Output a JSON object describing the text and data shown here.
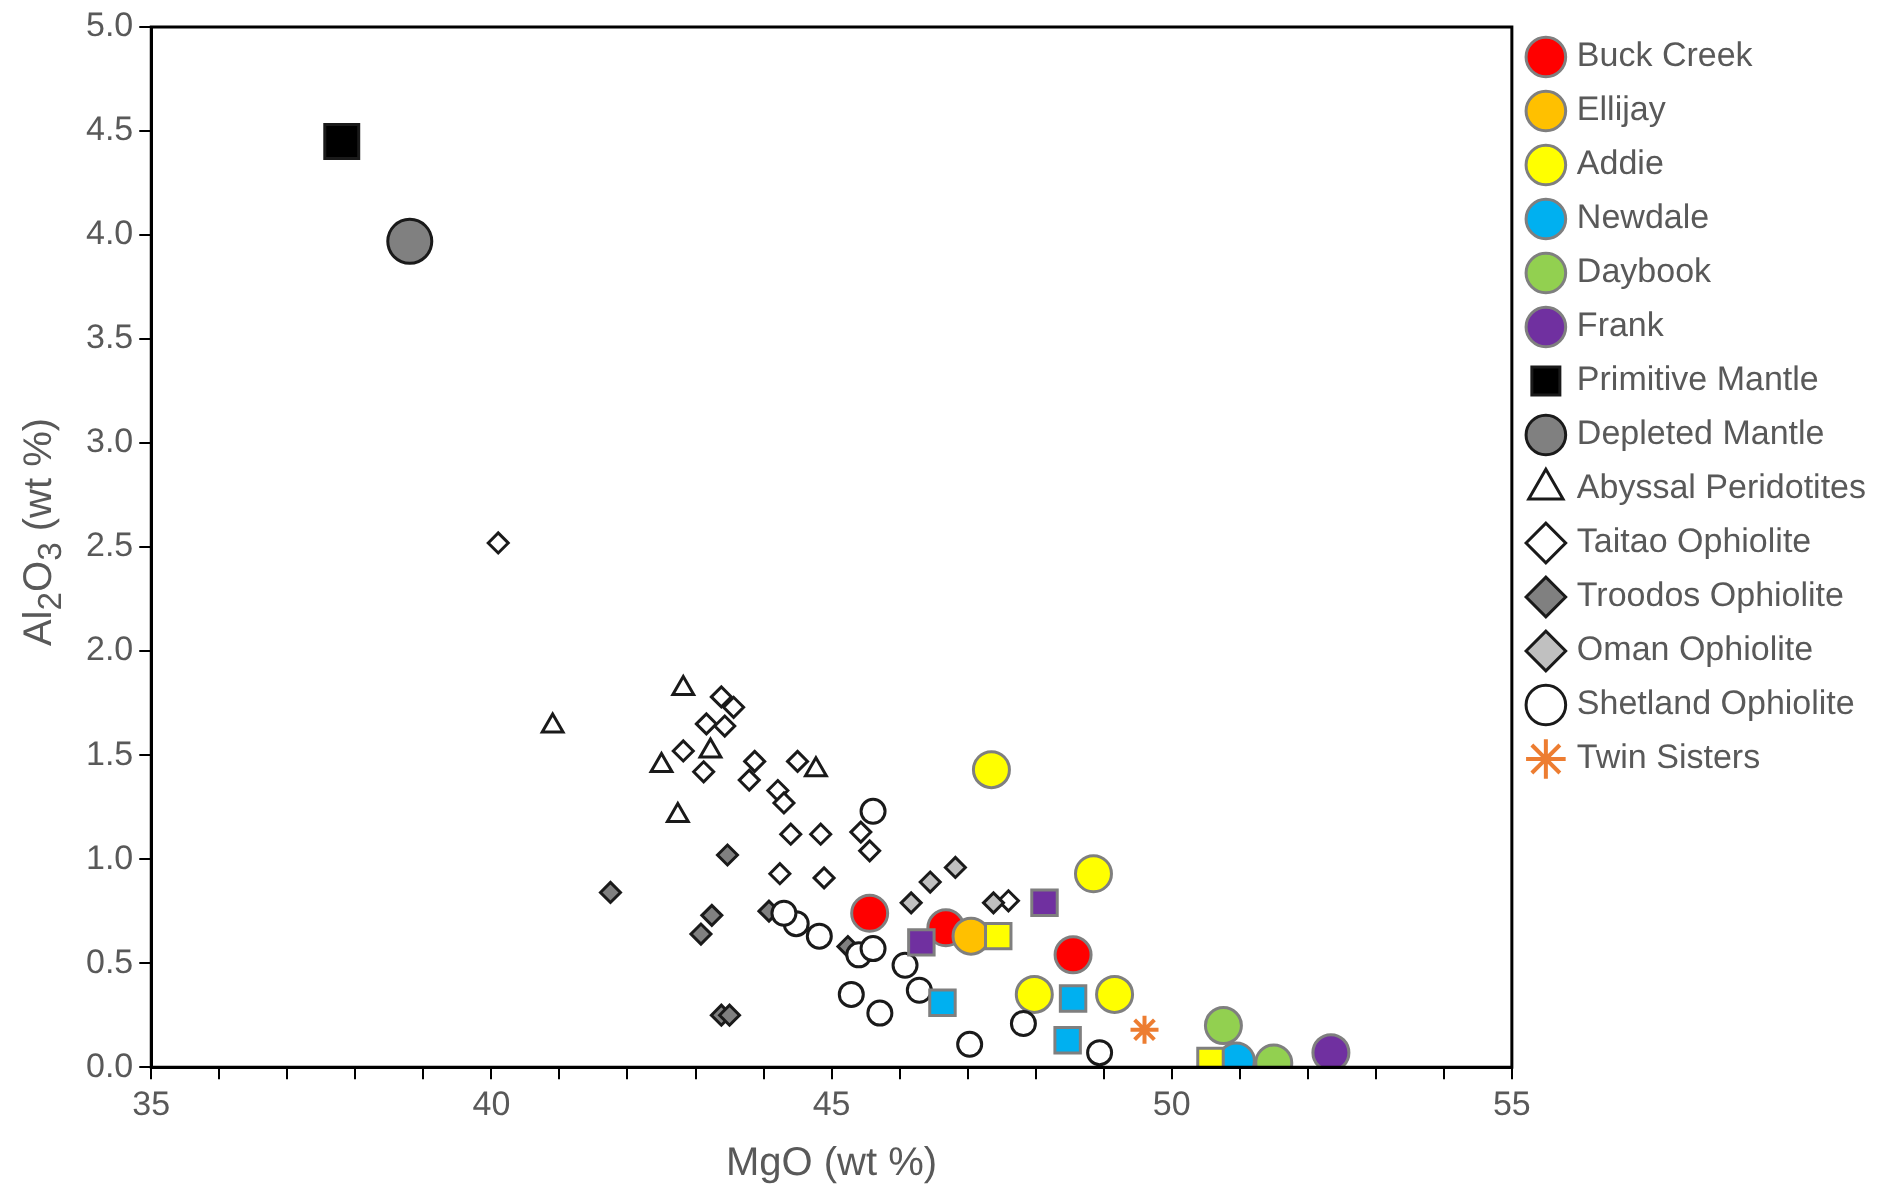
{
  "chart_data": {
    "type": "scatter",
    "xlabel": "MgO (wt %)",
    "ylabel": "Al$_{2}$O$_{3}$ (wt %)",
    "xlim": [
      35,
      55
    ],
    "ylim": [
      0,
      5
    ],
    "xticks": [
      35,
      {
        "value": 36,
        "label": null
      },
      {
        "value": 37,
        "label": null
      },
      {
        "value": 38,
        "label": null
      },
      {
        "value": 39,
        "label": null
      },
      40,
      {
        "value": 41,
        "label": null
      },
      {
        "value": 42,
        "label": null
      },
      {
        "value": 43,
        "label": null
      },
      {
        "value": 44,
        "label": null
      },
      45,
      {
        "value": 46,
        "label": null
      },
      {
        "value": 47,
        "label": null
      },
      {
        "value": 48,
        "label": null
      },
      {
        "value": 49,
        "label": null
      },
      50,
      {
        "value": 51,
        "label": null
      },
      {
        "value": 52,
        "label": null
      },
      {
        "value": 53,
        "label": null
      },
      {
        "value": 54,
        "label": null
      },
      55
    ],
    "yticks": [
      {
        "value": 0,
        "label": "0.0"
      },
      0.5,
      {
        "value": 1,
        "label": "1.0"
      },
      1.5,
      {
        "value": 2,
        "label": "2.0"
      },
      2.5,
      {
        "value": 3,
        "label": "3.0"
      },
      3.5,
      {
        "value": 4,
        "label": "4.0"
      },
      4.5,
      {
        "value": 5,
        "label": "5.0"
      }
    ],
    "grid": false,
    "legend": "right",
    "series": [
      {
        "name": "Buck Creek",
        "color": "#ff0000",
        "marker": "circle",
        "x": [
          45.56,
          46.68,
          48.55
        ],
        "values": [
          0.74,
          0.67,
          0.54
        ]
      },
      {
        "name": "Ellijay",
        "color": "#ffc000",
        "marker": "circle",
        "x": [
          47.05
        ],
        "values": [
          0.63
        ]
      },
      {
        "name": "Addie",
        "color": "#ffff00",
        "marker": "circle",
        "x": [
          47.35,
          48.85,
          47.98,
          49.16
        ],
        "values": [
          1.43,
          0.93,
          0.35,
          0.35
        ]
      },
      {
        "name": "Newdale",
        "color": "#00b0f0",
        "marker": "circle",
        "x": [
          50.95
        ],
        "values": [
          0.03
        ]
      },
      {
        "name": "Daybook",
        "color": "#92d050",
        "marker": "circle",
        "x": [
          50.76,
          51.5
        ],
        "values": [
          0.2,
          0.02
        ]
      },
      {
        "name": "Frank",
        "color": "#7030a0",
        "marker": "circle",
        "x": [
          52.34
        ],
        "values": [
          0.07
        ]
      },
      {
        "name": "Primitive Mantle",
        "color": "#000000",
        "marker": "square",
        "x": [
          37.8
        ],
        "values": [
          4.45
        ]
      },
      {
        "name": "Depleted Mantle",
        "color": "#808080",
        "marker": "circle",
        "x": [
          38.8
        ],
        "values": [
          3.97
        ]
      },
      {
        "name": "Abyssal Peridotites",
        "color": "#ffffff",
        "marker": "triangle",
        "x": [
          40.9,
          42.82,
          42.5,
          42.74,
          43.22,
          44.77
        ],
        "values": [
          1.64,
          1.82,
          1.45,
          1.21,
          1.52,
          1.43
        ]
      },
      {
        "name": "Taitao Ophiolite",
        "color": "#ffffff",
        "marker": "diamond",
        "x": [
          40.1,
          43.38,
          43.56,
          43.16,
          43.43,
          42.82,
          43.12,
          43.87,
          43.79,
          44.5,
          44.21,
          44.3,
          44.4,
          44.84,
          45.43,
          45.56,
          44.24,
          44.89,
          47.6
        ],
        "values": [
          2.52,
          1.78,
          1.73,
          1.65,
          1.64,
          1.52,
          1.42,
          1.47,
          1.38,
          1.47,
          1.33,
          1.27,
          1.12,
          1.12,
          1.13,
          1.04,
          0.93,
          0.91,
          0.8
        ]
      },
      {
        "name": "Troodos Ophiolite",
        "color": "#808080",
        "marker": "diamond",
        "x": [
          41.75,
          43.47,
          43.24,
          43.08,
          43.38,
          43.5,
          44.08,
          45.24
        ],
        "values": [
          0.84,
          1.02,
          0.73,
          0.64,
          0.25,
          0.25,
          0.75,
          0.58
        ]
      },
      {
        "name": "Oman Ophiolite",
        "color": "#c0c0c0",
        "marker": "diamond",
        "x": [
          46.17,
          46.45,
          46.82,
          47.38
        ],
        "values": [
          0.79,
          0.89,
          0.96,
          0.79
        ]
      },
      {
        "name": "Shetland Ophiolite",
        "color": "#ffffff",
        "marker": "circle",
        "x": [
          45.61,
          44.48,
          44.3,
          44.82,
          45.4,
          45.61,
          46.08,
          46.29,
          45.29,
          45.71,
          47.03,
          47.82,
          48.94
        ],
        "values": [
          1.23,
          0.69,
          0.74,
          0.63,
          0.54,
          0.57,
          0.49,
          0.37,
          0.35,
          0.26,
          0.11,
          0.21,
          0.07
        ]
      },
      {
        "name": "Twin Sisters",
        "color": "#ed7d31",
        "marker": "cross",
        "x": [
          49.6
        ],
        "values": [
          0.18
        ]
      },
      {
        "color": "#ffff00",
        "marker": "square",
        "x": [
          47.45,
          50.57
        ],
        "values": [
          0.63,
          0.03
        ]
      },
      {
        "color": "#00b0f0",
        "marker": "square",
        "x": [
          46.63,
          48.55,
          48.47
        ],
        "values": [
          0.31,
          0.33,
          0.13
        ]
      },
      {
        "color": "#7030a0",
        "marker": "square",
        "x": [
          46.32,
          48.13
        ],
        "values": [
          0.6,
          0.79
        ]
      }
    ]
  }
}
